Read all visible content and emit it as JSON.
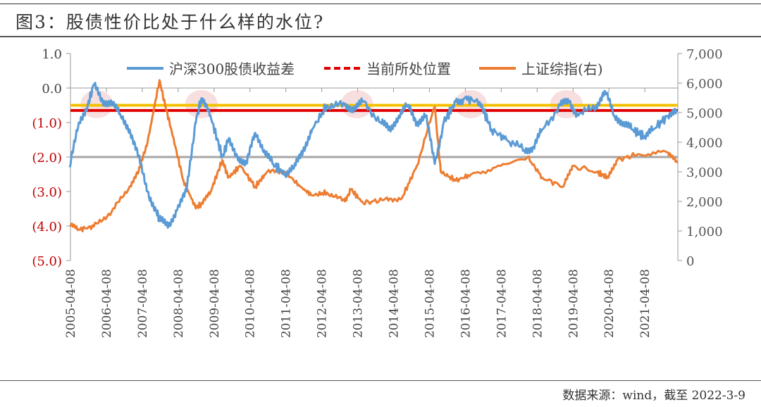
{
  "title": "图3：股债性价比处于什么样的水位?",
  "footer": "数据来源：wind，截至 2022-3-9",
  "chart_data": {
    "type": "line",
    "title": "图3：股债性价比处于什么样的水位?",
    "legend": {
      "position": "top",
      "entries": [
        "沪深300股债收益差",
        "当前所处位置",
        "上证综指(右)"
      ]
    },
    "y_left": {
      "range": [
        -5,
        1
      ],
      "ticks": [
        "1.0",
        "0.0",
        "(1.0)",
        "(2.0)",
        "(3.0)",
        "(4.0)",
        "(5.0)"
      ],
      "tick_values": [
        1,
        0,
        -1,
        -2,
        -3,
        -4,
        -5
      ]
    },
    "y_right": {
      "range": [
        0,
        7000
      ],
      "ticks": [
        "7,000",
        "6,000",
        "5,000",
        "4,000",
        "3,000",
        "2,000",
        "1,000",
        "0"
      ],
      "tick_values": [
        7000,
        6000,
        5000,
        4000,
        3000,
        2000,
        1000,
        0
      ]
    },
    "x_ticks": [
      "2005-04-08",
      "2006-04-08",
      "2007-04-08",
      "2008-04-08",
      "2009-04-08",
      "2010-04-08",
      "2011-04-08",
      "2012-04-08",
      "2013-04-08",
      "2014-04-08",
      "2015-04-08",
      "2016-04-08",
      "2017-04-08",
      "2018-04-08",
      "2019-04-08",
      "2020-04-08",
      "2021-04-08"
    ],
    "x_range": [
      "2005-04-08",
      "2022-03-09"
    ],
    "colors": {
      "spread": "#5b9bd5",
      "current": "#e00000",
      "index": "#ed7d31",
      "upper_line": "#f5c000",
      "reference_line": "#a6a6a6",
      "highlight": "#f2c4c4",
      "negative_tick": "#c00000"
    },
    "reference_lines": [
      {
        "name": "当前所处位置",
        "axis": "left",
        "value": -0.65,
        "color": "#e00000"
      },
      {
        "axis": "left",
        "value": -0.5,
        "color": "#f5c000"
      },
      {
        "axis": "left",
        "value": -2.0,
        "color": "#a6a6a6"
      }
    ],
    "highlight_dates": [
      "2006-01",
      "2008-12",
      "2013-04",
      "2016-06",
      "2019-02"
    ],
    "series": [
      {
        "name": "沪深300股债收益差",
        "axis": "left",
        "x": [
          "2005-04",
          "2005-07",
          "2005-10",
          "2005-12",
          "2006-03",
          "2006-06",
          "2006-09",
          "2006-12",
          "2007-03",
          "2007-06",
          "2007-09",
          "2007-10",
          "2008-01",
          "2008-04",
          "2008-07",
          "2008-10",
          "2008-12",
          "2009-03",
          "2009-07",
          "2009-09",
          "2009-12",
          "2010-03",
          "2010-06",
          "2010-09",
          "2010-12",
          "2011-04",
          "2011-07",
          "2011-10",
          "2012-01",
          "2012-06",
          "2012-12",
          "2013-03",
          "2013-06",
          "2013-12",
          "2014-03",
          "2014-06",
          "2014-09",
          "2014-12",
          "2015-03",
          "2015-06",
          "2015-09",
          "2016-01",
          "2016-04",
          "2016-09",
          "2017-01",
          "2017-06",
          "2017-12",
          "2018-03",
          "2018-06",
          "2018-12",
          "2019-03",
          "2019-06",
          "2019-12",
          "2020-03",
          "2020-06",
          "2020-09",
          "2020-12",
          "2021-04",
          "2021-07",
          "2021-12",
          "2022-03"
        ],
        "values": [
          -2.3,
          -1.0,
          -0.5,
          0.1,
          -0.4,
          -0.4,
          -0.8,
          -1.2,
          -2.0,
          -3.0,
          -3.6,
          -3.8,
          -4.0,
          -3.5,
          -3.0,
          -1.0,
          -0.3,
          -0.8,
          -2.0,
          -1.5,
          -2.0,
          -2.2,
          -1.3,
          -1.8,
          -2.2,
          -2.5,
          -2.3,
          -1.8,
          -1.2,
          -0.5,
          -0.5,
          -0.6,
          -0.4,
          -1.0,
          -1.2,
          -0.8,
          -0.5,
          -1.0,
          -0.8,
          -2.2,
          -1.0,
          -0.4,
          -0.3,
          -0.4,
          -1.2,
          -1.5,
          -1.8,
          -1.7,
          -1.2,
          -0.5,
          -0.4,
          -0.8,
          -0.5,
          -0.1,
          -0.8,
          -1.0,
          -1.2,
          -1.4,
          -1.2,
          -0.8,
          -0.7
        ]
      },
      {
        "name": "上证综指(右)",
        "axis": "right",
        "x": [
          "2005-04",
          "2005-07",
          "2005-12",
          "2006-06",
          "2006-12",
          "2007-03",
          "2007-06",
          "2007-10",
          "2007-12",
          "2008-02",
          "2008-06",
          "2008-10",
          "2008-12",
          "2009-03",
          "2009-07",
          "2009-09",
          "2010-01",
          "2010-06",
          "2010-10",
          "2011-04",
          "2011-09",
          "2012-01",
          "2012-06",
          "2012-12",
          "2013-02",
          "2013-06",
          "2014-01",
          "2014-07",
          "2014-12",
          "2015-06",
          "2015-08",
          "2016-01",
          "2016-06",
          "2017-04",
          "2018-01",
          "2018-06",
          "2019-01",
          "2019-04",
          "2019-12",
          "2020-04",
          "2020-07",
          "2021-02",
          "2021-12",
          "2022-03"
        ],
        "values": [
          1200,
          1050,
          1150,
          1650,
          2500,
          3000,
          4000,
          6100,
          5200,
          4400,
          2700,
          1800,
          1900,
          2300,
          3400,
          2800,
          3200,
          2500,
          3000,
          3000,
          2500,
          2200,
          2300,
          2000,
          2400,
          1950,
          2050,
          2100,
          3200,
          5200,
          3000,
          2700,
          2900,
          3200,
          3500,
          2800,
          2500,
          3200,
          3000,
          2800,
          3400,
          3600,
          3650,
          3300
        ]
      }
    ]
  }
}
